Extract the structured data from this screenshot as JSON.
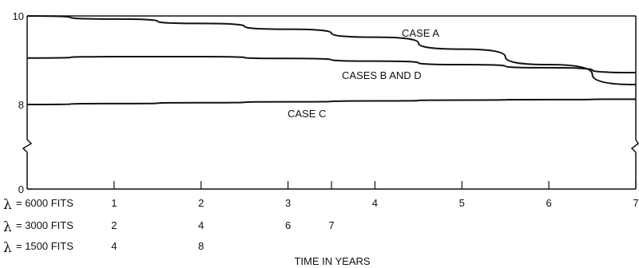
{
  "chart_data": {
    "type": "line",
    "title": "",
    "xlabel": "TIME IN YEARS",
    "ylabel": "",
    "xlim": [
      0,
      7
    ],
    "y_ticks": [
      "10",
      "8",
      "0"
    ],
    "y_axis_break": true,
    "grid": false,
    "series": [
      {
        "name": "CASE A",
        "x": [
          0,
          1,
          2,
          3,
          4,
          5,
          6,
          7
        ],
        "y": [
          10,
          9.93,
          9.83,
          9.7,
          9.52,
          9.25,
          8.9,
          8.45
        ]
      },
      {
        "name": "CASES B AND D",
        "x": [
          0,
          1,
          2,
          3,
          4,
          5,
          6,
          7
        ],
        "y": [
          9.05,
          9.08,
          9.08,
          9.04,
          8.98,
          8.9,
          8.83,
          8.72
        ]
      },
      {
        "name": "CASE C",
        "x": [
          0,
          1,
          2,
          3,
          4,
          5,
          6,
          7
        ],
        "y": [
          8.0,
          8.02,
          8.04,
          8.06,
          8.08,
          8.1,
          8.11,
          8.12
        ]
      }
    ],
    "x_scales": [
      {
        "lambda_label": "= 6000 FITS",
        "ticks": [
          "1",
          "2",
          "3",
          "4",
          "5",
          "6",
          "7"
        ],
        "tick_years": [
          1,
          2,
          3,
          4,
          5,
          6,
          7
        ]
      },
      {
        "lambda_label": "= 3000 FITS",
        "ticks": [
          "2",
          "4",
          "6",
          "7"
        ],
        "tick_years": [
          1,
          2,
          3,
          3.5
        ]
      },
      {
        "lambda_label": "= 1500 FITS",
        "ticks": [
          "4",
          "8"
        ],
        "tick_years": [
          1,
          2
        ]
      }
    ],
    "lambda_symbol": "λ"
  }
}
